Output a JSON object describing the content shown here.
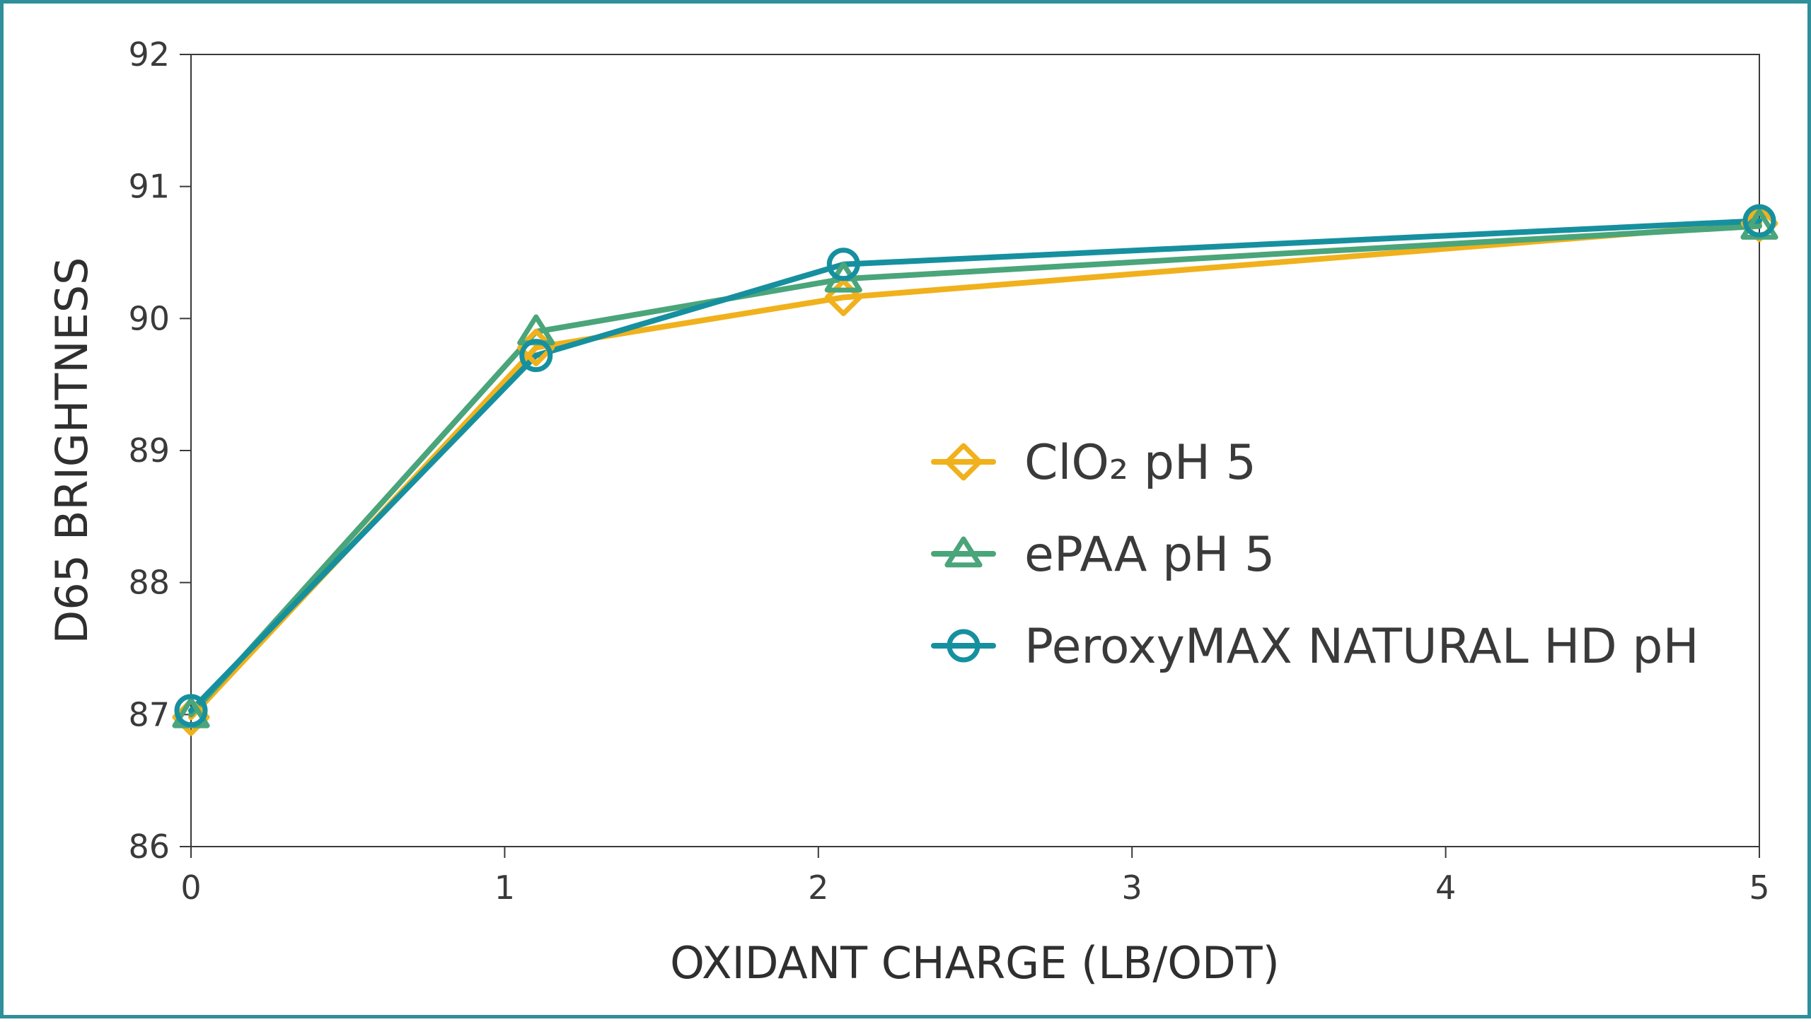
{
  "chart_data": {
    "type": "line",
    "xlabel": "OXIDANT CHARGE (LB/ODT)",
    "ylabel": "D65 BRIGHTNESS",
    "xlim": [
      0,
      5
    ],
    "ylim": [
      86,
      92
    ],
    "xticks": [
      0,
      1,
      2,
      3,
      4,
      5
    ],
    "yticks": [
      86,
      87,
      88,
      89,
      90,
      91,
      92
    ],
    "grid": false,
    "legend_position": "center-right",
    "series": [
      {
        "name": "ClO₂ pH 5",
        "color": "#f0b11c",
        "marker": "diamond",
        "points": [
          [
            0,
            86.98
          ],
          [
            1.1,
            89.78
          ],
          [
            2.08,
            90.16
          ],
          [
            5.0,
            90.72
          ]
        ]
      },
      {
        "name": "ePAA pH 5",
        "color": "#4aa57a",
        "marker": "triangle",
        "points": [
          [
            0,
            87.0
          ],
          [
            1.1,
            89.9
          ],
          [
            2.08,
            90.3
          ],
          [
            5.0,
            90.7
          ]
        ]
      },
      {
        "name": "PeroxyMAX NATURAL HD pH",
        "color": "#16909f",
        "marker": "circle",
        "points": [
          [
            0,
            87.03
          ],
          [
            1.1,
            89.72
          ],
          [
            2.08,
            90.41
          ],
          [
            5.0,
            90.74
          ]
        ]
      }
    ]
  }
}
